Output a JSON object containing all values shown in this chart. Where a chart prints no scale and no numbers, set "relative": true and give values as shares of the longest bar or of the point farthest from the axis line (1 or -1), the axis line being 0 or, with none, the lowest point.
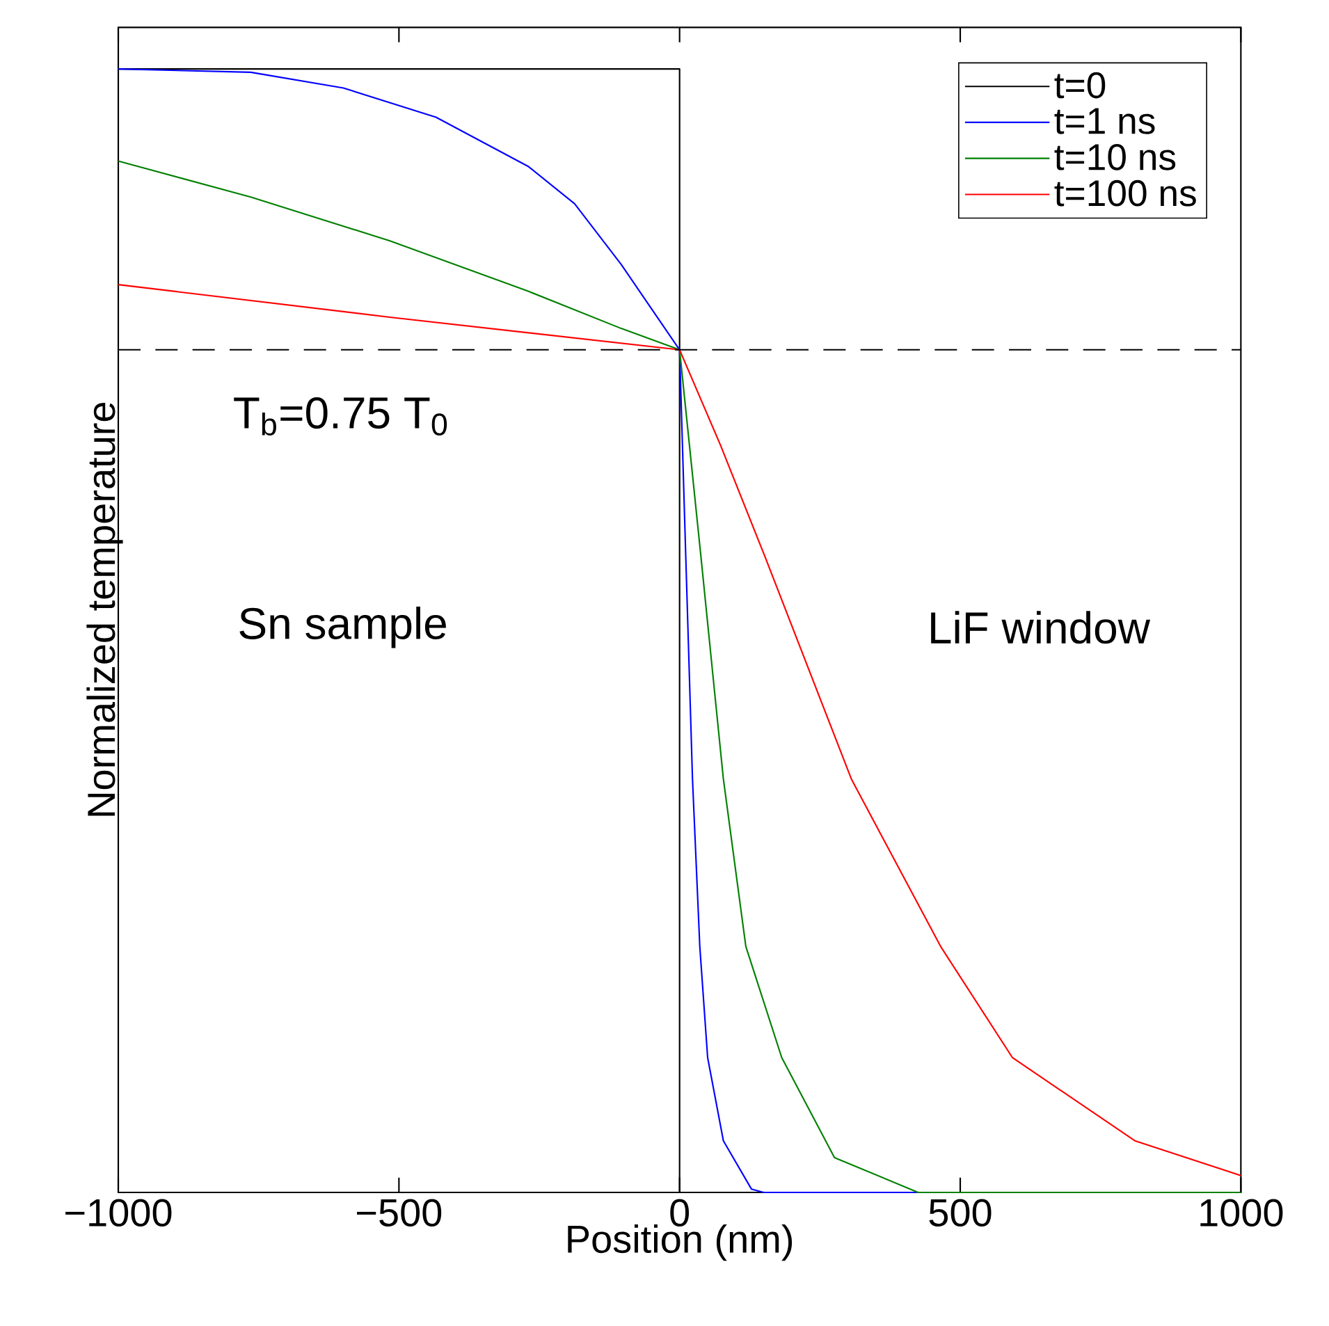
{
  "chart_data": {
    "type": "line",
    "relative": true,
    "xlabel": "Position (nm)",
    "ylabel": "Normalized temperature",
    "xlim": [
      -1000,
      1000
    ],
    "xticks": [
      {
        "value": -1000,
        "label": "−1000"
      },
      {
        "value": -500,
        "label": "−500"
      },
      0,
      500,
      1000
    ],
    "legend": "top right",
    "grid": false,
    "marker": "none",
    "line_style": "solid",
    "tick_labels": "x",
    "series": [
      {
        "name": "t=0",
        "color": "#000000",
        "x": [
          -1000,
          0,
          0,
          1000
        ],
        "values": [
          1,
          1,
          0,
          0
        ]
      },
      {
        "name": "t=1 ns",
        "color": "#0000ff",
        "x": [
          -1000,
          -764,
          -599,
          -434,
          -269,
          -187,
          -104,
          0,
          11,
          23,
          36,
          50,
          78,
          128,
          150,
          1000
        ],
        "values": [
          1.0,
          0.997,
          0.983,
          0.957,
          0.913,
          0.88,
          0.826,
          0.75,
          0.566,
          0.368,
          0.219,
          0.12,
          0.046,
          0.003,
          0,
          0
        ]
      },
      {
        "name": "t=10 ns",
        "color": "#008000",
        "x": [
          -1000,
          -764,
          -516,
          -269,
          -104,
          0,
          38,
          78,
          118,
          182,
          276,
          425,
          1000
        ],
        "values": [
          0.918,
          0.886,
          0.847,
          0.802,
          0.769,
          0.75,
          0.566,
          0.368,
          0.219,
          0.12,
          0.031,
          0,
          0
        ]
      },
      {
        "name": "t=100 ns",
        "color": "#ff0000",
        "x": [
          -1000,
          -516,
          0,
          73,
          152,
          306,
          465,
          593,
          811,
          1000
        ],
        "values": [
          0.808,
          0.779,
          0.75,
          0.665,
          0.566,
          0.368,
          0.219,
          0.12,
          0.046,
          0.015
        ]
      }
    ],
    "ref_lines": [
      {
        "axis": "y",
        "value": 0.75,
        "label": "T$_{b}$=0.75 T$_{0}$",
        "color": "#000000",
        "line_style": "dashed"
      }
    ],
    "annotations": [
      "Sn sample",
      "LiF window"
    ]
  }
}
